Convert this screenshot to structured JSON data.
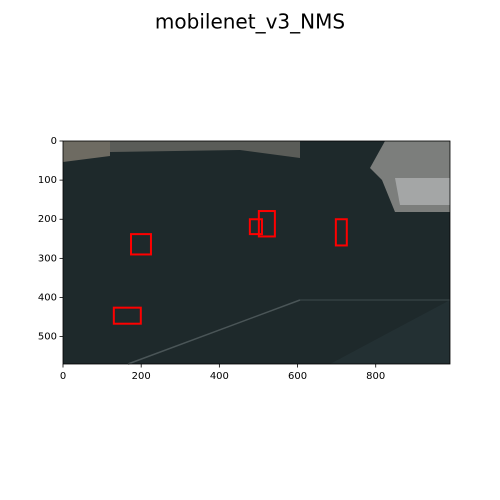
{
  "chart_data": {
    "type": "detection",
    "title": "mobilenet_v3_NMS",
    "xlim": [
      0,
      990
    ],
    "ylim": [
      570,
      0
    ],
    "xticks": [
      0,
      200,
      400,
      600,
      800
    ],
    "yticks": [
      0,
      100,
      200,
      300,
      400,
      500
    ],
    "color": "#ff0000",
    "boxes": [
      {
        "x1": 174,
        "y1": 238,
        "x2": 225,
        "y2": 290
      },
      {
        "x1": 130,
        "y1": 426,
        "x2": 199,
        "y2": 467
      },
      {
        "x1": 478,
        "y1": 200,
        "x2": 509,
        "y2": 238
      },
      {
        "x1": 501,
        "y1": 179,
        "x2": 542,
        "y2": 244
      },
      {
        "x1": 698,
        "y1": 200,
        "x2": 726,
        "y2": 267
      }
    ]
  }
}
